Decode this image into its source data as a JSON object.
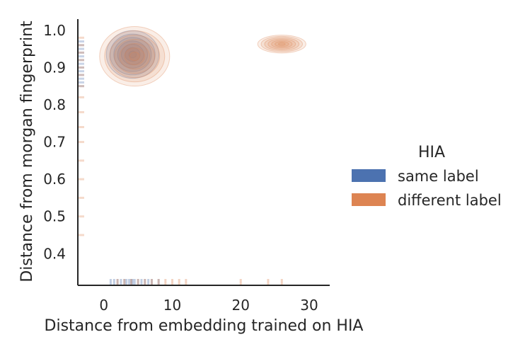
{
  "chart_data": {
    "type": "kde-contour-with-rug",
    "xlabel": "Distance from embedding trained on HIA",
    "ylabel": "Distance from morgan fingerprint",
    "xlim": [
      -3.8,
      33
    ],
    "ylim": [
      0.315,
      1.03
    ],
    "xticks": [
      0,
      10,
      20,
      30
    ],
    "yticks": [
      0.4,
      0.5,
      0.6,
      0.7,
      0.8,
      0.9,
      1.0
    ],
    "ytick_labels": [
      "0.4",
      "0.5",
      "0.6",
      "0.7",
      "0.8",
      "0.9",
      "1.0"
    ],
    "grid": false,
    "legend": {
      "title": "HIA",
      "placement": "right",
      "entries": [
        {
          "label": "same label",
          "color": "#4c72b0"
        },
        {
          "label": "different label",
          "color": "#dd8452"
        }
      ]
    },
    "series": [
      {
        "name": "same label",
        "color": "#4c72b0",
        "kde_modes": [
          {
            "x": 4.2,
            "y": 0.935,
            "sx": 2.4,
            "sy": 0.04
          }
        ],
        "rug_x": [
          1,
          1.5,
          2,
          2.5,
          3,
          3.3,
          3.7,
          4,
          4.2,
          4.5,
          5,
          5.5,
          6,
          6.5,
          7,
          8
        ],
        "rug_y": [
          0.95,
          0.94,
          0.93,
          0.92,
          0.91,
          0.9,
          0.89,
          0.88,
          0.87,
          0.86,
          0.85,
          0.96,
          0.97
        ]
      },
      {
        "name": "different label",
        "color": "#dd8452",
        "kde_modes": [
          {
            "x": 4.5,
            "y": 0.93,
            "sx": 3.2,
            "sy": 0.05
          },
          {
            "x": 26,
            "y": 0.963,
            "sx": 2.2,
            "sy": 0.015
          }
        ],
        "rug_x": [
          2,
          3,
          4,
          5,
          6,
          7,
          8,
          9,
          10,
          11,
          12,
          20,
          24,
          26
        ],
        "rug_y": [
          0.98,
          0.96,
          0.94,
          0.92,
          0.9,
          0.88,
          0.85,
          0.82,
          0.78,
          0.74,
          0.7,
          0.65,
          0.6,
          0.55,
          0.5,
          0.45
        ]
      }
    ]
  }
}
